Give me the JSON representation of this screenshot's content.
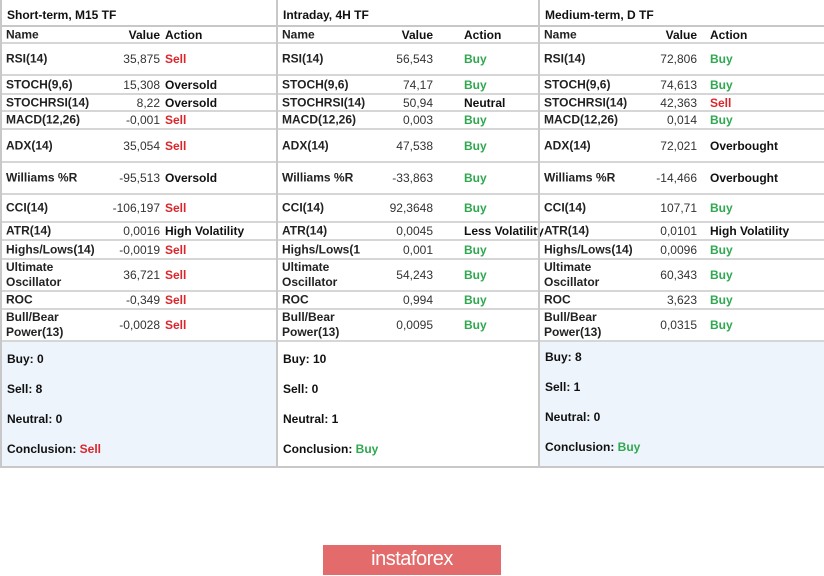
{
  "colors": {
    "sell": "#d9262c",
    "buy": "#2fa84f",
    "neutral": "#111111"
  },
  "headers": {
    "name": "Name",
    "value": "Value",
    "action": "Action"
  },
  "sections": [
    {
      "title": "Short-term, M15 TF",
      "rows": [
        {
          "name": "RSI(14)",
          "value": "35,875",
          "action": "Sell",
          "signal": "sell"
        },
        {
          "name": "STOCH(9,6)",
          "value": "15,308",
          "action": "Oversold",
          "signal": "neutral"
        },
        {
          "name": "STOCHRSI(14)",
          "value": "8,22",
          "action": "Oversold",
          "signal": "neutral"
        },
        {
          "name": "MACD(12,26)",
          "value": "-0,001",
          "action": "Sell",
          "signal": "sell"
        },
        {
          "name": "ADX(14)",
          "value": "35,054",
          "action": "Sell",
          "signal": "sell"
        },
        {
          "name": "Williams %R",
          "value": "-95,513",
          "action": "Oversold",
          "signal": "neutral"
        },
        {
          "name": "CCI(14)",
          "value": "-106,197",
          "action": "Sell",
          "signal": "sell"
        },
        {
          "name": "ATR(14)",
          "value": "0,0016",
          "action": "High Volatility",
          "signal": "neutral"
        },
        {
          "name": "Highs/Lows(14)",
          "value": "-0,0019",
          "action": "Sell",
          "signal": "sell"
        },
        {
          "name": "Ultimate Oscillator",
          "value": "36,721",
          "action": "Sell",
          "signal": "sell"
        },
        {
          "name": "ROC",
          "value": "-0,349",
          "action": "Sell",
          "signal": "sell"
        },
        {
          "name": "Bull/Bear Power(13)",
          "value": "-0,0028",
          "action": "Sell",
          "signal": "sell"
        }
      ],
      "summary": {
        "buy": "Buy: 0",
        "sell": "Sell: 8",
        "neutral": "Neutral: 0",
        "conclusion_label": "Conclusion: ",
        "conclusion": "Sell",
        "signal": "sell"
      }
    },
    {
      "title": "Intraday, 4H TF",
      "rows": [
        {
          "name": "RSI(14)",
          "value": "56,543",
          "action": "Buy",
          "signal": "buy"
        },
        {
          "name": "STOCH(9,6)",
          "value": "74,17",
          "action": "Buy",
          "signal": "buy"
        },
        {
          "name": "STOCHRSI(14)",
          "value": "50,94",
          "action": "Neutral",
          "signal": "neutral"
        },
        {
          "name": "MACD(12,26)",
          "value": "0,003",
          "action": "Buy",
          "signal": "buy"
        },
        {
          "name": "ADX(14)",
          "value": "47,538",
          "action": "Buy",
          "signal": "buy"
        },
        {
          "name": "Williams %R",
          "value": "-33,863",
          "action": "Buy",
          "signal": "buy"
        },
        {
          "name": "CCI(14)",
          "value": "92,3648",
          "action": "Buy",
          "signal": "buy"
        },
        {
          "name": "ATR(14)",
          "value": "0,0045",
          "action": "Less Volatility",
          "signal": "neutral"
        },
        {
          "name": "Highs/Lows(1",
          "value": "0,001",
          "action": "Buy",
          "signal": "buy"
        },
        {
          "name": "Ultimate Oscillator",
          "value": "54,243",
          "action": "Buy",
          "signal": "buy"
        },
        {
          "name": "ROC",
          "value": "0,994",
          "action": "Buy",
          "signal": "buy"
        },
        {
          "name": "Bull/Bear Power(13)",
          "value": "0,0095",
          "action": "Buy",
          "signal": "buy"
        }
      ],
      "summary": {
        "buy": "Buy: 10",
        "sell": "Sell: 0",
        "neutral": "Neutral: 1",
        "conclusion_label": "Conclusion: ",
        "conclusion": "Buy",
        "signal": "buy"
      }
    },
    {
      "title": "Medium-term, D TF",
      "rows": [
        {
          "name": "RSI(14)",
          "value": "72,806",
          "action": "Buy",
          "signal": "buy"
        },
        {
          "name": "STOCH(9,6)",
          "value": "74,613",
          "action": "Buy",
          "signal": "buy"
        },
        {
          "name": "STOCHRSI(14)",
          "value": "42,363",
          "action": "Sell",
          "signal": "sell"
        },
        {
          "name": "MACD(12,26)",
          "value": "0,014",
          "action": "Buy",
          "signal": "buy"
        },
        {
          "name": "ADX(14)",
          "value": "72,021",
          "action": "Overbought",
          "signal": "neutral"
        },
        {
          "name": "Williams %R",
          "value": "-14,466",
          "action": "Overbought",
          "signal": "neutral"
        },
        {
          "name": "CCI(14)",
          "value": "107,71",
          "action": "Buy",
          "signal": "buy"
        },
        {
          "name": "ATR(14)",
          "value": "0,0101",
          "action": "High Volatility",
          "signal": "neutral"
        },
        {
          "name": "Highs/Lows(14)",
          "value": "0,0096",
          "action": "Buy",
          "signal": "buy"
        },
        {
          "name": "Ultimate Oscillator",
          "value": "60,343",
          "action": "Buy",
          "signal": "buy"
        },
        {
          "name": "ROC",
          "value": "3,623",
          "action": "Buy",
          "signal": "buy"
        },
        {
          "name": "Bull/Bear Power(13)",
          "value": "0,0315",
          "action": "Buy",
          "signal": "buy"
        }
      ],
      "summary": {
        "buy": "Buy: 8",
        "sell": "Sell: 1",
        "neutral": "Neutral: 0",
        "conclusion_label": "Conclusion: ",
        "conclusion": "Buy",
        "signal": "buy"
      }
    }
  ],
  "logo": {
    "text": "instaforex"
  }
}
